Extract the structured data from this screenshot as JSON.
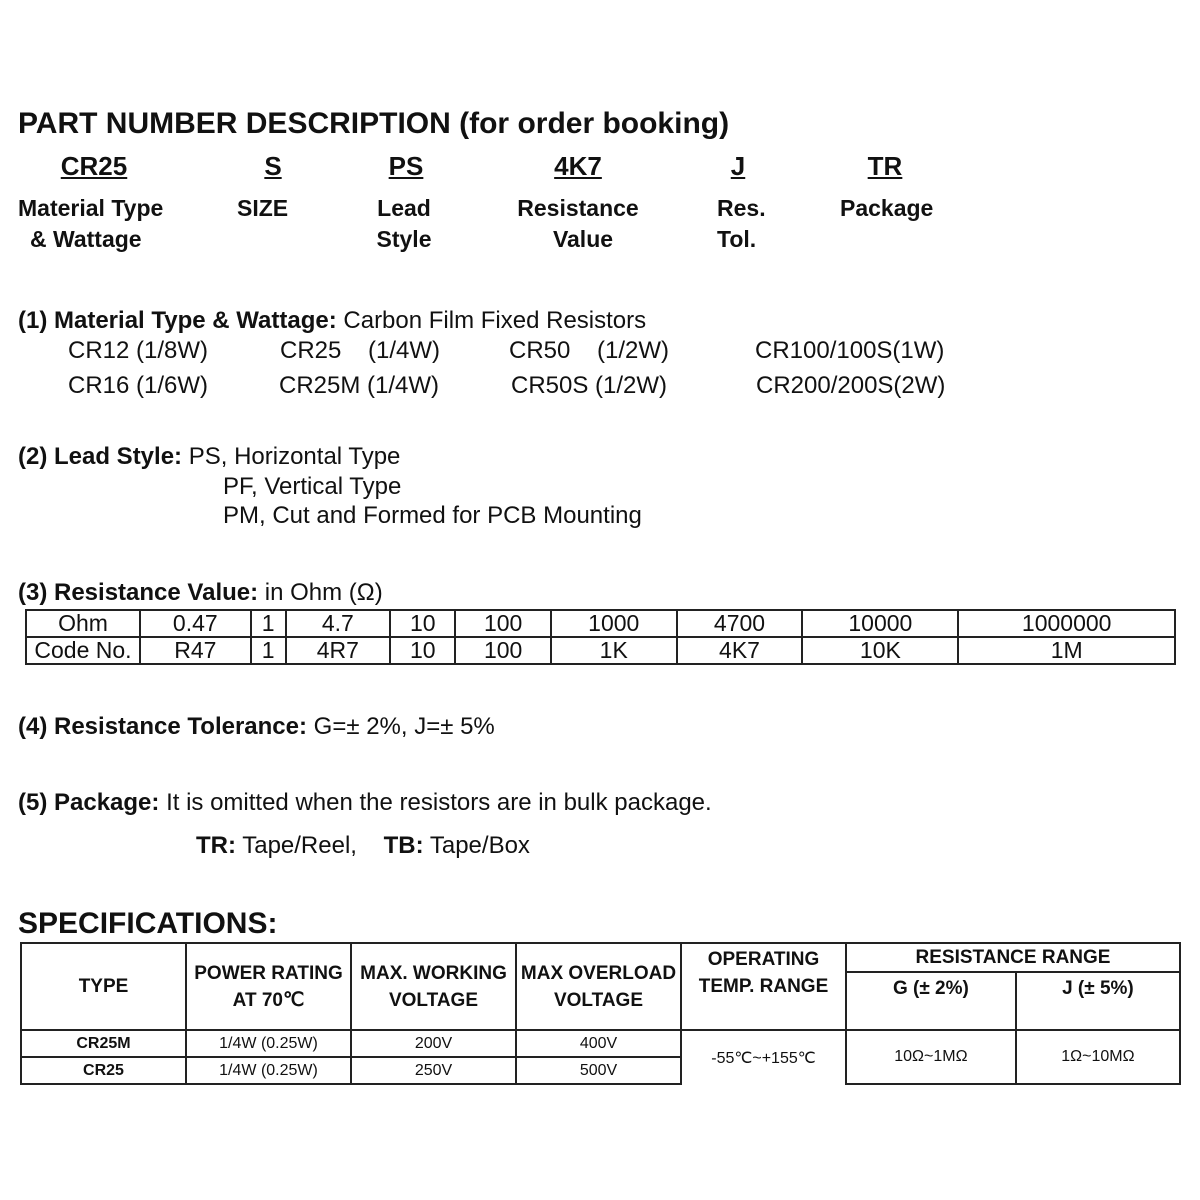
{
  "title": "PART NUMBER DESCRIPTION (for order booking)",
  "codes": [
    "CR25",
    "S",
    "PS",
    "4K7",
    "J",
    "TR"
  ],
  "code_labels": [
    [
      "Material Type",
      "& Wattage"
    ],
    [
      "SIZE",
      ""
    ],
    [
      "Lead",
      "Style"
    ],
    [
      "Resistance",
      "Value"
    ],
    [
      "Res.",
      "Tol."
    ],
    [
      "Package",
      ""
    ]
  ],
  "s1": {
    "head": "(1) Material Type & Wattage:",
    "text": " Carbon Film Fixed Resistors",
    "items": [
      "CR12 (1/8W)",
      "CR25    (1/4W)",
      "CR50    (1/2W)",
      "CR100/100S(1W)",
      "CR16 (1/6W)",
      "CR25M (1/4W)",
      "CR50S (1/2W)",
      "CR200/200S(2W)"
    ]
  },
  "s2": {
    "head": "(2) Lead Style:",
    "lines": [
      "PS, Horizontal Type",
      "PF, Vertical Type",
      "PM, Cut and Formed for PCB Mounting"
    ]
  },
  "s3": {
    "head": "(3) Resistance Value:",
    "text": " in Ohm (Ω)",
    "ohm": [
      "Ohm",
      "0.47",
      "1",
      "4.7",
      "10",
      "100",
      "1000",
      "4700",
      "10000",
      "1000000"
    ],
    "code": [
      "Code No.",
      "R47",
      "1",
      "4R7",
      "10",
      "100",
      "1K",
      "4K7",
      "10K",
      "1M"
    ]
  },
  "s4": {
    "head": "(4) Resistance Tolerance:",
    "text": " G=± 2%, J=± 5%"
  },
  "s5": {
    "head": "(5) Package:",
    "text": " It is omitted when the resistors are in bulk package.",
    "tr": "TR:",
    "tr_text": " Tape/Reel,",
    "tb": "TB:",
    "tb_text": " Tape/Box"
  },
  "spec": {
    "title": "SPECIFICATIONS:",
    "headers": [
      "TYPE",
      "POWER RATING AT 70℃",
      "MAX. WORKING VOLTAGE",
      "MAX OVERLOAD VOLTAGE",
      "OPERATING TEMP. RANGE",
      "RESISTANCE RANGE",
      "G (± 2%)",
      "J (± 5%)"
    ],
    "rows": [
      [
        "CR25M",
        "1/4W (0.25W)",
        "200V",
        "400V"
      ],
      [
        "CR25",
        "1/4W (0.25W)",
        "250V",
        "500V"
      ]
    ],
    "temp": "-55℃~+155℃",
    "range_g": "10Ω~1MΩ",
    "range_j": "1Ω~10MΩ"
  }
}
